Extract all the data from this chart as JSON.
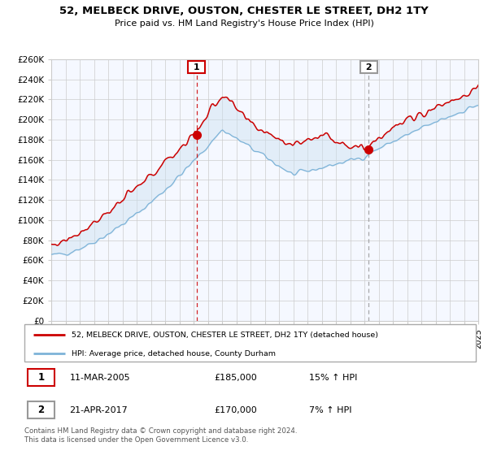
{
  "title": "52, MELBECK DRIVE, OUSTON, CHESTER LE STREET, DH2 1TY",
  "subtitle": "Price paid vs. HM Land Registry's House Price Index (HPI)",
  "legend_line1": "52, MELBECK DRIVE, OUSTON, CHESTER LE STREET, DH2 1TY (detached house)",
  "legend_line2": "HPI: Average price, detached house, County Durham",
  "marker1_date": "11-MAR-2005",
  "marker1_price": "£185,000",
  "marker1_hpi": "15% ↑ HPI",
  "marker2_date": "21-APR-2017",
  "marker2_price": "£170,000",
  "marker2_hpi": "7% ↑ HPI",
  "footer": "Contains HM Land Registry data © Crown copyright and database right 2024.\nThis data is licensed under the Open Government Licence v3.0.",
  "ylim": [
    0,
    260000
  ],
  "yticks": [
    0,
    20000,
    40000,
    60000,
    80000,
    100000,
    120000,
    140000,
    160000,
    180000,
    200000,
    220000,
    240000,
    260000
  ],
  "red_line_color": "#cc0000",
  "blue_line_color": "#7db3d8",
  "fill_color": "#cce0f0",
  "marker_color": "#cc0000",
  "grid_color": "#cccccc",
  "bg_color": "#ffffff",
  "chart_bg": "#f5f8ff",
  "vline1_color": "#cc0000",
  "vline2_color": "#999999",
  "box1_color": "#cc0000",
  "box2_color": "#999999",
  "marker1_x": 2005.2,
  "marker1_y": 185000,
  "marker2_x": 2017.3,
  "marker2_y": 170000,
  "xmin": 1995,
  "xmax": 2025
}
